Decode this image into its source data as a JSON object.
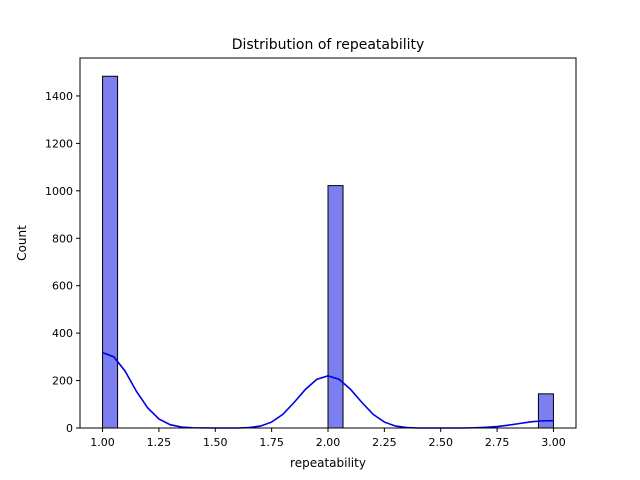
{
  "chart_data": {
    "type": "bar",
    "title": "Distribution of repeatability",
    "xlabel": "repeatability",
    "ylabel": "Count",
    "xlim": [
      0.9,
      3.1
    ],
    "ylim": [
      0,
      1560
    ],
    "xticks": [
      1.0,
      1.25,
      1.5,
      1.75,
      2.0,
      2.25,
      2.5,
      2.75,
      3.0
    ],
    "xtick_labels": [
      "1.00",
      "1.25",
      "1.50",
      "1.75",
      "2.00",
      "2.25",
      "2.50",
      "2.75",
      "3.00"
    ],
    "yticks": [
      0,
      200,
      400,
      600,
      800,
      1000,
      1200,
      1400
    ],
    "ytick_labels": [
      "0",
      "200",
      "400",
      "600",
      "800",
      "1000",
      "1200",
      "1400"
    ],
    "bins": [
      {
        "x0": 1.0,
        "x1": 1.0667,
        "count": 1483
      },
      {
        "x0": 2.0,
        "x1": 2.0667,
        "count": 1022
      },
      {
        "x0": 2.9333,
        "x1": 3.0,
        "count": 144
      }
    ],
    "kde": [
      {
        "x": 1.0,
        "y": 318
      },
      {
        "x": 1.05,
        "y": 300
      },
      {
        "x": 1.1,
        "y": 240
      },
      {
        "x": 1.15,
        "y": 155
      },
      {
        "x": 1.2,
        "y": 85
      },
      {
        "x": 1.25,
        "y": 38
      },
      {
        "x": 1.3,
        "y": 14
      },
      {
        "x": 1.35,
        "y": 4
      },
      {
        "x": 1.4,
        "y": 1
      },
      {
        "x": 1.5,
        "y": 0
      },
      {
        "x": 1.6,
        "y": 0
      },
      {
        "x": 1.65,
        "y": 2
      },
      {
        "x": 1.7,
        "y": 8
      },
      {
        "x": 1.75,
        "y": 25
      },
      {
        "x": 1.8,
        "y": 58
      },
      {
        "x": 1.85,
        "y": 108
      },
      {
        "x": 1.9,
        "y": 163
      },
      {
        "x": 1.95,
        "y": 205
      },
      {
        "x": 2.0,
        "y": 220
      },
      {
        "x": 2.05,
        "y": 205
      },
      {
        "x": 2.1,
        "y": 163
      },
      {
        "x": 2.15,
        "y": 108
      },
      {
        "x": 2.2,
        "y": 58
      },
      {
        "x": 2.25,
        "y": 25
      },
      {
        "x": 2.3,
        "y": 8
      },
      {
        "x": 2.35,
        "y": 2
      },
      {
        "x": 2.4,
        "y": 0
      },
      {
        "x": 2.5,
        "y": 0
      },
      {
        "x": 2.6,
        "y": 0
      },
      {
        "x": 2.65,
        "y": 1
      },
      {
        "x": 2.7,
        "y": 3
      },
      {
        "x": 2.75,
        "y": 6
      },
      {
        "x": 2.8,
        "y": 12
      },
      {
        "x": 2.85,
        "y": 19
      },
      {
        "x": 2.9,
        "y": 26
      },
      {
        "x": 2.95,
        "y": 30
      },
      {
        "x": 3.0,
        "y": 31
      }
    ],
    "grid": false,
    "legend": "none",
    "colors": {
      "bar_fill": "#7b7ff0",
      "bar_edge": "#000000",
      "kde_line": "#0000e6"
    }
  }
}
